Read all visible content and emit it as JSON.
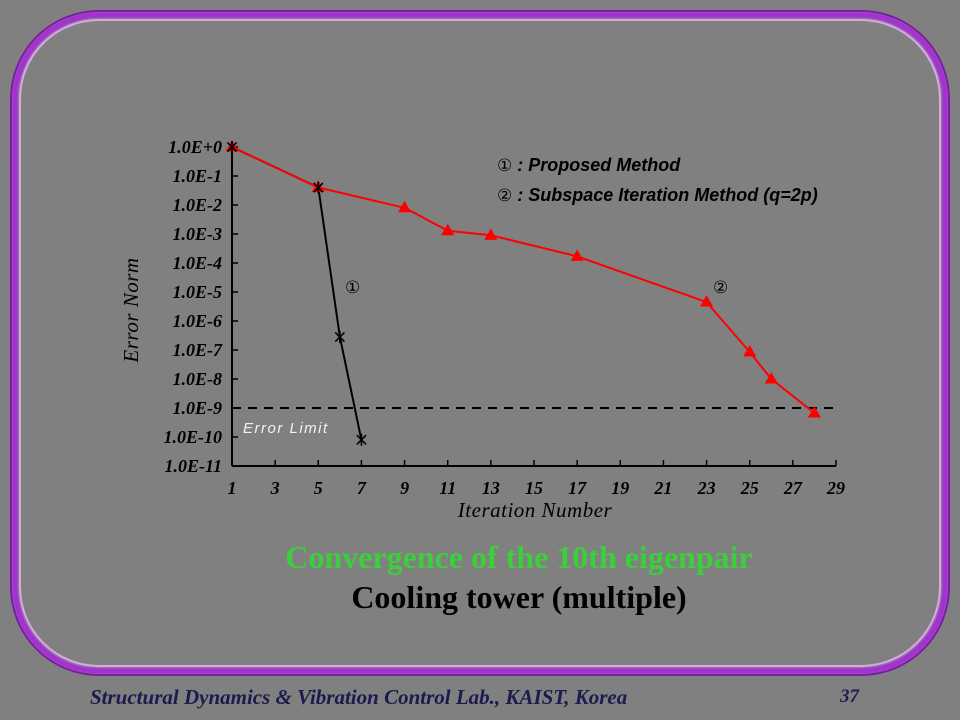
{
  "slide": {
    "footer": "Structural Dynamics & Vibration Control Lab., KAIST, Korea",
    "page_number": "37"
  },
  "colors": {
    "background": "#808080",
    "frame_shadow": "#7d1aa8",
    "frame_outer": "#a72fd6",
    "frame_inner": "#e0a0f5",
    "title": "#3ccf3c",
    "subtitle": "#000000",
    "footer_text": "#1b1b4d",
    "axis": "#000000"
  },
  "chart_data": {
    "type": "line",
    "title": "Convergence of the 10th eigenpair",
    "subtitle": "Cooling tower (multiple)",
    "xlabel": "Iteration Number",
    "ylabel": "Error Norm",
    "xscale": "linear",
    "yscale": "log",
    "xlim": [
      1,
      29
    ],
    "ylim": [
      1e-11,
      1
    ],
    "grid": false,
    "x_ticks": [
      1,
      3,
      5,
      7,
      9,
      11,
      13,
      15,
      17,
      19,
      21,
      23,
      25,
      27,
      29
    ],
    "x_tick_labels": [
      "1",
      "3",
      "5",
      "7",
      "9",
      "11",
      "13",
      "15",
      "17",
      "19",
      "21",
      "23",
      "25",
      "27",
      "29"
    ],
    "y_ticks": [
      1,
      0.1,
      0.01,
      0.001,
      0.0001,
      1e-05,
      1e-06,
      1e-07,
      1e-08,
      1e-09,
      1e-10,
      1e-11
    ],
    "y_tick_labels": [
      "1.0E+0",
      "1.0E-1",
      "1.0E-2",
      "1.0E-3",
      "1.0E-4",
      "1.0E-5",
      "1.0E-6",
      "1.0E-7",
      "1.0E-8",
      "1.0E-9",
      "1.0E-10",
      "1.0E-11"
    ],
    "legend": {
      "position": "top-right",
      "separator": ":"
    },
    "series": [
      {
        "symbol": "①",
        "name": "Proposed Method",
        "color": "#000000",
        "marker": "asterisk",
        "x": [
          1,
          5,
          6,
          7
        ],
        "y": [
          1,
          0.04,
          2.8e-07,
          8e-11
        ]
      },
      {
        "symbol": "②",
        "name": "Subspace Iteration Method (q=2p)",
        "color": "#ff0000",
        "marker": "triangle",
        "x": [
          1,
          5,
          9,
          11,
          13,
          17,
          23,
          25,
          26,
          28
        ],
        "y": [
          1,
          0.04,
          0.008,
          0.0013,
          0.0009,
          0.00017,
          4.5e-06,
          8.5e-08,
          1e-08,
          6.7e-10
        ]
      }
    ],
    "reference_lines": [
      {
        "label": "Error Limit",
        "y": 1e-09,
        "style": "dashed",
        "color": "#000000"
      }
    ]
  }
}
